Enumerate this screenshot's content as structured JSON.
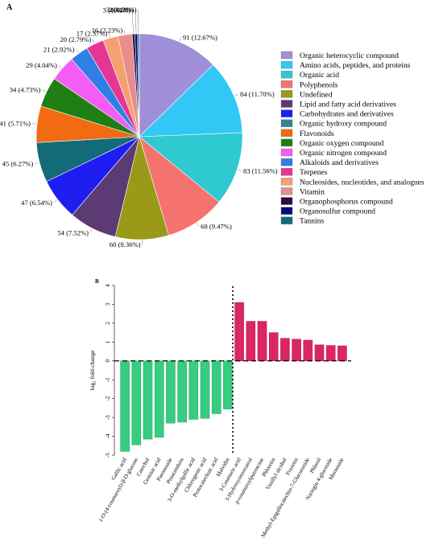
{
  "chart_data": [
    {
      "type": "pie",
      "panel_label": "A",
      "title": "",
      "labels": [
        "Organic heterocyclic compound",
        "Amino acids, peptides, and proteins",
        "Organic acid",
        "Polyphenols",
        "Undefined",
        "Lipid and fatty acid derivatives",
        "Carbohydrates and derivatives",
        "Organic hydroxy compound",
        "Flavonoids",
        "Organic oxygen compound",
        "Organic nitrogen compound",
        "Alkaloids and derivatives",
        "Terpenes",
        "Nucleosides, nucleotides, and analogues",
        "Vitamin",
        "Organophosphorus compound",
        "Organosulfur compound",
        "Tannins"
      ],
      "legend_order": [
        "Organic heterocyclic compound",
        "Amino acids, peptides, and proteins",
        "Organic acid",
        "Polyphenols",
        "Undefined",
        "Lipid and fatty acid derivatives",
        "Carbohydrates and derivatives",
        "Organic hydroxy compound",
        "Flavonoids",
        "Organic oxygen compound",
        "Organic nitrogen compound",
        "Alkaloids and derivatives",
        "Terpenes",
        "Nucleosides, nucleotides, and analogues",
        "Vitamin",
        "Organophosphorus compound",
        "Organosulfur compound",
        "Tannins"
      ],
      "slices": [
        {
          "label": "Organic heterocyclic compound",
          "value": 91,
          "text": "91 (12.67%)",
          "color": "#9F8FD8"
        },
        {
          "label": "Amino acids, peptides, and proteins",
          "value": 84,
          "text": "84 (11.70%)",
          "color": "#33C7F5"
        },
        {
          "label": "Organic acid",
          "value": 83,
          "text": "83 (11.56%)",
          "color": "#2FC9D2"
        },
        {
          "label": "Polyphenols",
          "value": 68,
          "text": "68 (9.47%)",
          "color": "#F4736E"
        },
        {
          "label": "Undefined",
          "value": 60,
          "text": "60 (8.36%)",
          "color": "#9A9A18"
        },
        {
          "label": "Lipid and fatty acid derivatives",
          "value": 54,
          "text": "54 (7.52%)",
          "color": "#5C3A74"
        },
        {
          "label": "Carbohydrates and derivatives",
          "value": 47,
          "text": "47 (6.54%)",
          "color": "#1E1EF0"
        },
        {
          "label": "Tannins",
          "value": 45,
          "text": "45 (6.27%)",
          "color": "#136B79"
        },
        {
          "label": "Flavonoids",
          "value": 41,
          "text": "41 (5.71%)",
          "color": "#F06B12"
        },
        {
          "label": "Organic oxygen compound",
          "value": 34,
          "text": "34 (4.73%)",
          "color": "#1F7F14"
        },
        {
          "label": "Organic nitrogen compound",
          "value": 29,
          "text": "29 (4.04%)",
          "color": "#F35CF5"
        },
        {
          "label": "Alkaloids and derivatives",
          "value": 21,
          "text": "21 (2.92%)",
          "color": "#2F7FE6"
        },
        {
          "label": "Terpenes",
          "value": 20,
          "text": "20 (2.79%)",
          "color": "#E43694"
        },
        {
          "label": "Nucleosides, nucleotides, and analogues",
          "value": 17,
          "text": "17 (2.37%)",
          "color": "#F5A070"
        },
        {
          "label": "Vitamin",
          "value": 16,
          "text": "16 (2.23%)",
          "color": "#E88E8C"
        },
        {
          "label": "Organophosphorus compound",
          "value": 3,
          "text": "3 (0.42%)",
          "color": "#2A0F3E"
        },
        {
          "label": "Organosulfur compound",
          "value": 3,
          "text": "3 (0.42%)",
          "color": "#0A0A80"
        },
        {
          "label": "Organic hydroxy compound",
          "value": 2,
          "text": "2 (0.28%)",
          "color": "#2F8599"
        }
      ]
    },
    {
      "type": "bar",
      "panel_label": "B",
      "title": "",
      "xlabel": "",
      "ylabel": "log₂ fold-change",
      "ylim": [
        -5,
        4
      ],
      "yticks": [
        -5,
        -4,
        -3,
        -2,
        -1,
        0,
        1,
        2,
        3,
        4
      ],
      "categories": [
        "Gallic acid",
        "1-O-(4-coumaroyl)-β-D-glucose",
        "Catechol",
        "Gentisic acid",
        "Paeonoside",
        "Pinocembrin",
        "3-O-methylgallic acid",
        "Chlorogenic acid",
        "Protocatechuic acid",
        "Malvidin",
        "3-Coumaric acid",
        "3-Hydroxyresveratrol",
        "p-coumaroylputrescine",
        "Phloretin",
        "Vanillyl alcohol",
        "Fraxetin",
        "4-Methyl-Epigallocatechin-7-Glucuronide",
        "Phlorol",
        "Naringin 4-glucoside",
        "Mornoside"
      ],
      "values": [
        -4.8,
        -4.45,
        -4.15,
        -4.05,
        -3.3,
        -3.25,
        -3.1,
        -3.05,
        -2.8,
        -2.55,
        3.1,
        2.1,
        2.1,
        1.5,
        1.2,
        1.15,
        1.1,
        0.85,
        0.82,
        0.8
      ],
      "colors": {
        "negative": "#2DC97A",
        "positive": "#D81B5A",
        "divider": "#000000"
      }
    }
  ]
}
